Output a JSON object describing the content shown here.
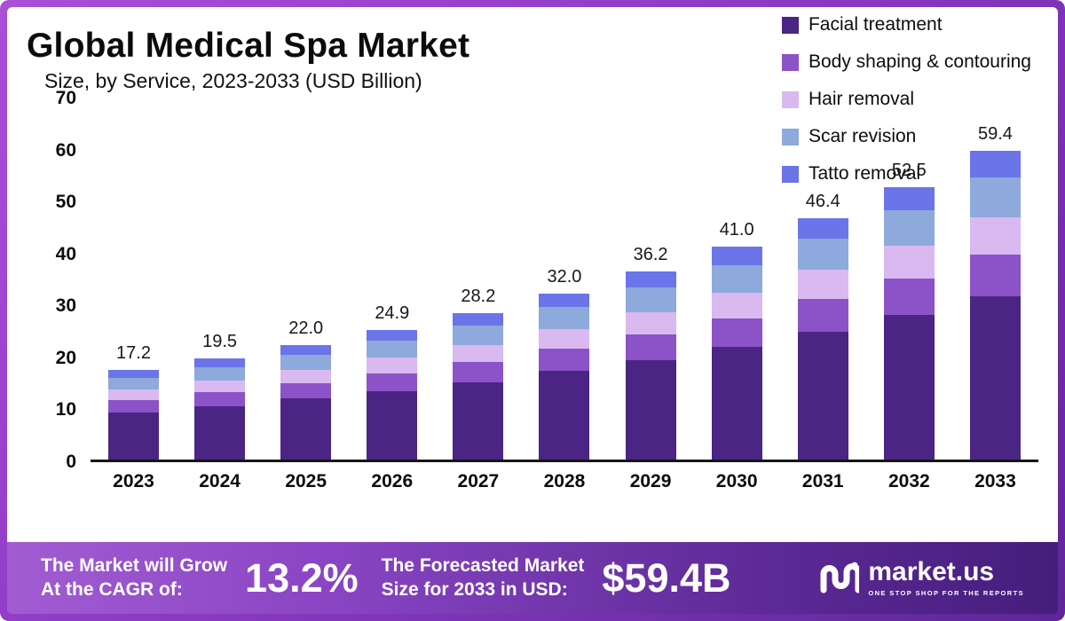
{
  "chart_data": {
    "type": "bar",
    "stacked": true,
    "title": "Global Medical Spa Market",
    "subtitle": "Size, by Service, 2023-2033 (USD Billion)",
    "categories": [
      "2023",
      "2024",
      "2025",
      "2026",
      "2027",
      "2028",
      "2029",
      "2030",
      "2031",
      "2032",
      "2033"
    ],
    "totals": [
      17.2,
      19.5,
      22.0,
      24.9,
      28.2,
      32.0,
      36.2,
      41.0,
      46.4,
      52.5,
      59.4
    ],
    "series": [
      {
        "name": "Facial treatment",
        "color": "#4b2583",
        "values": [
          9.1,
          10.3,
          11.7,
          13.2,
          14.9,
          17.0,
          19.2,
          21.7,
          24.6,
          27.8,
          31.5
        ]
      },
      {
        "name": "Body shaping & contouring",
        "color": "#8c52c7",
        "values": [
          2.3,
          2.6,
          3.0,
          3.4,
          3.8,
          4.3,
          4.9,
          5.5,
          6.3,
          7.1,
          8.0
        ]
      },
      {
        "name": "Hair removal",
        "color": "#d9b9ef",
        "values": [
          2.1,
          2.3,
          2.6,
          3.0,
          3.4,
          3.8,
          4.3,
          4.9,
          5.6,
          6.3,
          7.1
        ]
      },
      {
        "name": "Scar revision",
        "color": "#8ea9db",
        "values": [
          2.2,
          2.5,
          2.9,
          3.2,
          3.7,
          4.2,
          4.7,
          5.3,
          6.0,
          6.8,
          7.7
        ]
      },
      {
        "name": "Tatto removal",
        "color": "#6b74e8",
        "values": [
          1.5,
          1.8,
          1.8,
          2.1,
          2.4,
          2.7,
          3.1,
          3.6,
          3.9,
          4.5,
          5.1
        ]
      }
    ],
    "ylim": [
      0,
      70
    ],
    "yticks": [
      0,
      10,
      20,
      30,
      40,
      50,
      60,
      70
    ],
    "legend_position": "top-right",
    "grid": false
  },
  "footer": {
    "cagr_label_line1": "The Market will Grow",
    "cagr_label_line2": "At the CAGR of:",
    "cagr_value": "13.2%",
    "forecast_label_line1": "The Forecasted Market",
    "forecast_label_line2": "Size for 2033 in USD:",
    "forecast_value": "$59.4B",
    "brand_name": "market.us",
    "brand_tagline": "ONE STOP SHOP FOR THE REPORTS"
  },
  "colors": {
    "frame": "#8d3ac4",
    "strip_left": "#a25cd2",
    "strip_right": "#451d7c",
    "axis": "#161616",
    "text": "#0c0c0c"
  }
}
